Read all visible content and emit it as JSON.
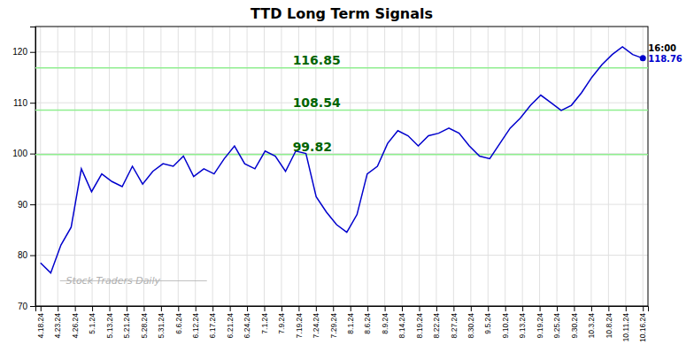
{
  "chart_data": {
    "type": "line",
    "title": "TTD Long Term Signals",
    "values": [
      78.5,
      76.5,
      82.0,
      85.5,
      97.0,
      92.5,
      96.0,
      94.5,
      93.5,
      97.5,
      94.0,
      96.5,
      98.0,
      97.5,
      99.5,
      95.5,
      97.0,
      96.0,
      99.0,
      101.5,
      98.0,
      97.0,
      100.5,
      99.5,
      96.5,
      100.5,
      100.0,
      91.5,
      88.5,
      86.0,
      84.5,
      88.0,
      96.0,
      97.5,
      102.0,
      104.5,
      103.5,
      101.5,
      103.5,
      104.0,
      105.0,
      104.0,
      101.5,
      99.5,
      99.0,
      102.0,
      105.0,
      107.0,
      109.5,
      111.5,
      110.0,
      108.5,
      109.5,
      112.0,
      115.0,
      117.5,
      119.5,
      121.0,
      119.5,
      118.76
    ],
    "color": "#0000CD",
    "marker": "last",
    "xlim": [
      -0.5,
      59.5
    ],
    "xticks": [
      {
        "value": 0,
        "label": "4.18.24"
      },
      {
        "value": 1.6857142857,
        "label": "4.23.24"
      },
      {
        "value": 3.3714285714,
        "label": "4.26.24"
      },
      {
        "value": 5.0571428571,
        "label": "5.1.24"
      },
      {
        "value": 6.7428571429,
        "label": "5.13.24"
      },
      {
        "value": 8.4285714286,
        "label": "5.21.24"
      },
      {
        "value": 10.1142857143,
        "label": "5.28.24"
      },
      {
        "value": 11.8,
        "label": "5.31.24"
      },
      {
        "value": 13.4857142857,
        "label": "6.6.24"
      },
      {
        "value": 15.1714285714,
        "label": "6.12.24"
      },
      {
        "value": 16.8571428571,
        "label": "6.17.24"
      },
      {
        "value": 18.5428571429,
        "label": "6.21.24"
      },
      {
        "value": 20.2285714286,
        "label": "6.24.24"
      },
      {
        "value": 21.9142857143,
        "label": "7.1.24"
      },
      {
        "value": 23.6,
        "label": "7.9.24"
      },
      {
        "value": 25.2857142857,
        "label": "7.19.24"
      },
      {
        "value": 26.9714285714,
        "label": "7.24.24"
      },
      {
        "value": 28.6571428571,
        "label": "7.29.24"
      },
      {
        "value": 30.3428571429,
        "label": "8.1.24"
      },
      {
        "value": 32.0285714286,
        "label": "8.6.24"
      },
      {
        "value": 33.7142857143,
        "label": "8.9.24"
      },
      {
        "value": 35.4,
        "label": "8.14.24"
      },
      {
        "value": 37.0857142857,
        "label": "8.19.24"
      },
      {
        "value": 38.7714285714,
        "label": "8.22.24"
      },
      {
        "value": 40.4571428571,
        "label": "8.27.24"
      },
      {
        "value": 42.1428571429,
        "label": "8.30.24"
      },
      {
        "value": 43.8285714286,
        "label": "9.5.24"
      },
      {
        "value": 45.5142857143,
        "label": "9.10.24"
      },
      {
        "value": 47.2,
        "label": "9.13.24"
      },
      {
        "value": 48.8857142857,
        "label": "9.19.24"
      },
      {
        "value": 50.5714285714,
        "label": "9.25.24"
      },
      {
        "value": 52.2571428571,
        "label": "9.30.24"
      },
      {
        "value": 53.9428571429,
        "label": "10.3.24"
      },
      {
        "value": 55.6285714286,
        "label": "10.8.24"
      },
      {
        "value": 57.3142857143,
        "label": "10.11.24"
      },
      {
        "value": 59,
        "label": "10.16.24"
      }
    ],
    "ylim": [
      70,
      125
    ],
    "yticks": [
      70,
      80,
      90,
      100,
      110,
      120
    ],
    "grid": true,
    "hlines": [
      {
        "value": 116.85,
        "label": "116.85",
        "color": "#90EE90",
        "label_color": "#006400"
      },
      {
        "value": 108.54,
        "label": "108.54",
        "color": "#90EE90",
        "label_color": "#006400"
      },
      {
        "value": 99.82,
        "label": "99.82",
        "color": "#90EE90",
        "label_color": "#006400"
      }
    ],
    "annotations": [
      {
        "text": "16:00"
      },
      {
        "text": "118.76",
        "color": "#0000CD"
      }
    ],
    "watermark": "Stock Traders Daily"
  }
}
